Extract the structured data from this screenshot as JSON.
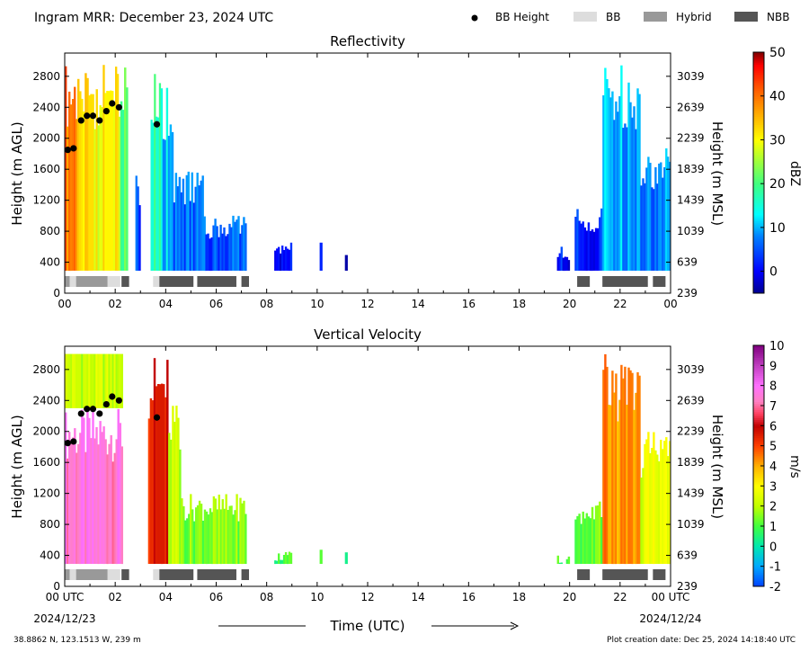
{
  "header": {
    "title": "Ingram MRR:  December 23, 2024 UTC",
    "legend": [
      {
        "label": "BB Height",
        "kind": "dot",
        "color": "#000000"
      },
      {
        "label": "BB",
        "kind": "box",
        "color": "#dddddd"
      },
      {
        "label": "Hybrid",
        "kind": "box",
        "color": "#999999"
      },
      {
        "label": "NBB",
        "kind": "box",
        "color": "#555555"
      }
    ]
  },
  "footer": {
    "location": "38.8862 N, 123.1513 W, 239 m",
    "creation": "Plot creation date: Dec 25, 2024 14:18:40 UTC",
    "xlabel": "Time (UTC)",
    "start_date": "2024/12/23",
    "end_date": "2024/12/24"
  },
  "chart_data": [
    {
      "type": "heatmap",
      "title": "Reflectivity",
      "ylabel": "Height (m AGL)",
      "y2label": "Height (m MSL)",
      "cbar_label": "dBZ",
      "xlim": [
        0,
        24
      ],
      "ylim": [
        0,
        3100
      ],
      "x_ticks": [
        "00",
        "02",
        "04",
        "06",
        "08",
        "10",
        "12",
        "14",
        "16",
        "18",
        "20",
        "22",
        "00"
      ],
      "y_ticks": [
        "0",
        "400",
        "800",
        "1200",
        "1600",
        "2000",
        "2400",
        "2800"
      ],
      "y2_ticks": [
        "239",
        "639",
        "1039",
        "1439",
        "1839",
        "2239",
        "2639",
        "3039"
      ],
      "cbar_range": [
        -5,
        50
      ],
      "cbar_ticks": [
        "0",
        "10",
        "20",
        "30",
        "40",
        "50"
      ],
      "bb_height": [
        [
          0.12,
          1850
        ],
        [
          0.35,
          1870
        ],
        [
          0.65,
          2230
        ],
        [
          0.88,
          2290
        ],
        [
          1.12,
          2290
        ],
        [
          1.38,
          2230
        ],
        [
          1.65,
          2350
        ],
        [
          1.88,
          2450
        ],
        [
          2.15,
          2400
        ],
        [
          3.65,
          2180
        ]
      ],
      "bb_classes": [
        {
          "start": 0.0,
          "end": 0.2,
          "cls": "Hybrid"
        },
        {
          "start": 0.2,
          "end": 0.45,
          "cls": "BB"
        },
        {
          "start": 0.45,
          "end": 1.7,
          "cls": "Hybrid"
        },
        {
          "start": 1.7,
          "end": 2.2,
          "cls": "BB"
        },
        {
          "start": 2.25,
          "end": 2.55,
          "cls": "NBB"
        },
        {
          "start": 3.5,
          "end": 3.75,
          "cls": "BB"
        },
        {
          "start": 3.75,
          "end": 5.1,
          "cls": "NBB"
        },
        {
          "start": 5.25,
          "end": 6.8,
          "cls": "NBB"
        },
        {
          "start": 7.0,
          "end": 7.3,
          "cls": "NBB"
        },
        {
          "start": 20.3,
          "end": 20.8,
          "cls": "NBB"
        },
        {
          "start": 21.3,
          "end": 23.1,
          "cls": "NBB"
        },
        {
          "start": 23.3,
          "end": 23.8,
          "cls": "NBB"
        }
      ],
      "echo_segments": [
        {
          "x0": 0.0,
          "x1": 0.5,
          "top": 3000,
          "value": 40
        },
        {
          "x0": 0.5,
          "x1": 1.3,
          "top": 3000,
          "value": 32
        },
        {
          "x0": 1.3,
          "x1": 2.2,
          "top": 3000,
          "value": 30
        },
        {
          "x0": 2.2,
          "x1": 2.5,
          "top": 3000,
          "value": 20
        },
        {
          "x0": 2.8,
          "x1": 3.0,
          "top": 1600,
          "value": 5
        },
        {
          "x0": 3.4,
          "x1": 3.8,
          "top": 3000,
          "value": 18
        },
        {
          "x0": 3.8,
          "x1": 4.3,
          "top": 2800,
          "value": 12
        },
        {
          "x0": 4.3,
          "x1": 5.5,
          "top": 1600,
          "value": 6
        },
        {
          "x0": 5.5,
          "x1": 7.2,
          "top": 1000,
          "value": 5
        },
        {
          "x0": 8.3,
          "x1": 9.0,
          "top": 700,
          "value": 1
        },
        {
          "x0": 10.1,
          "x1": 10.2,
          "top": 700,
          "value": 0
        },
        {
          "x0": 11.1,
          "x1": 11.2,
          "top": 700,
          "value": 0
        },
        {
          "x0": 19.5,
          "x1": 20.0,
          "top": 600,
          "value": 1
        },
        {
          "x0": 20.2,
          "x1": 21.3,
          "top": 1100,
          "value": 2
        },
        {
          "x0": 21.3,
          "x1": 22.8,
          "top": 3000,
          "value": 10
        },
        {
          "x0": 22.8,
          "x1": 24.0,
          "top": 1900,
          "value": 8
        }
      ]
    },
    {
      "type": "heatmap",
      "title": "Vertical Velocity",
      "ylabel": "Height (m AGL)",
      "y2label": "Height (m MSL)",
      "cbar_label": "m/s",
      "xlim": [
        0,
        24
      ],
      "ylim": [
        0,
        3100
      ],
      "x_ticks": [
        "00 UTC",
        "02",
        "04",
        "06",
        "08",
        "10",
        "12",
        "14",
        "16",
        "18",
        "20",
        "22",
        "00 UTC"
      ],
      "y_ticks": [
        "0",
        "400",
        "800",
        "1200",
        "1600",
        "2000",
        "2400",
        "2800"
      ],
      "y2_ticks": [
        "239",
        "639",
        "1039",
        "1439",
        "1839",
        "2239",
        "2639",
        "3039"
      ],
      "cbar_range": [
        -2,
        10
      ],
      "cbar_ticks": [
        "-2",
        "-1",
        "0",
        "1",
        "2",
        "3",
        "4",
        "5",
        "6",
        "7",
        "8",
        "9",
        "10"
      ],
      "bb_height": [
        [
          0.12,
          1850
        ],
        [
          0.35,
          1870
        ],
        [
          0.65,
          2230
        ],
        [
          0.88,
          2290
        ],
        [
          1.12,
          2290
        ],
        [
          1.38,
          2230
        ],
        [
          1.65,
          2350
        ],
        [
          1.88,
          2450
        ],
        [
          2.15,
          2400
        ],
        [
          3.65,
          2180
        ]
      ],
      "bb_classes": [
        {
          "start": 0.0,
          "end": 0.2,
          "cls": "Hybrid"
        },
        {
          "start": 0.2,
          "end": 0.45,
          "cls": "BB"
        },
        {
          "start": 0.45,
          "end": 1.7,
          "cls": "Hybrid"
        },
        {
          "start": 1.7,
          "end": 2.2,
          "cls": "BB"
        },
        {
          "start": 2.25,
          "end": 2.55,
          "cls": "NBB"
        },
        {
          "start": 3.5,
          "end": 3.75,
          "cls": "BB"
        },
        {
          "start": 3.75,
          "end": 5.1,
          "cls": "NBB"
        },
        {
          "start": 5.25,
          "end": 6.8,
          "cls": "NBB"
        },
        {
          "start": 7.0,
          "end": 7.3,
          "cls": "NBB"
        },
        {
          "start": 20.3,
          "end": 20.8,
          "cls": "NBB"
        },
        {
          "start": 21.3,
          "end": 23.1,
          "cls": "NBB"
        },
        {
          "start": 23.3,
          "end": 23.8,
          "cls": "NBB"
        }
      ],
      "echo_segments": [
        {
          "x0": 0.0,
          "x1": 2.3,
          "top": 2300,
          "value": 7.5
        },
        {
          "x0": 0.0,
          "x1": 2.3,
          "top": 3000,
          "value": 2.2,
          "bottom": 2300
        },
        {
          "x0": 3.3,
          "x1": 4.1,
          "top": 3000,
          "value": 5.5
        },
        {
          "x0": 4.1,
          "x1": 4.6,
          "top": 2400,
          "value": 2.0
        },
        {
          "x0": 4.6,
          "x1": 7.2,
          "top": 1200,
          "value": 1.5
        },
        {
          "x0": 8.3,
          "x1": 9.0,
          "top": 450,
          "value": 0.8
        },
        {
          "x0": 10.1,
          "x1": 10.2,
          "top": 500,
          "value": 0.8
        },
        {
          "x0": 11.1,
          "x1": 11.2,
          "top": 600,
          "value": 0.8
        },
        {
          "x0": 19.5,
          "x1": 20.0,
          "top": 400,
          "value": 0.8
        },
        {
          "x0": 20.2,
          "x1": 21.3,
          "top": 1100,
          "value": 1.2
        },
        {
          "x0": 21.3,
          "x1": 22.8,
          "top": 3000,
          "value": 4.2
        },
        {
          "x0": 22.8,
          "x1": 24.0,
          "top": 2000,
          "value": 2.5
        }
      ]
    }
  ]
}
